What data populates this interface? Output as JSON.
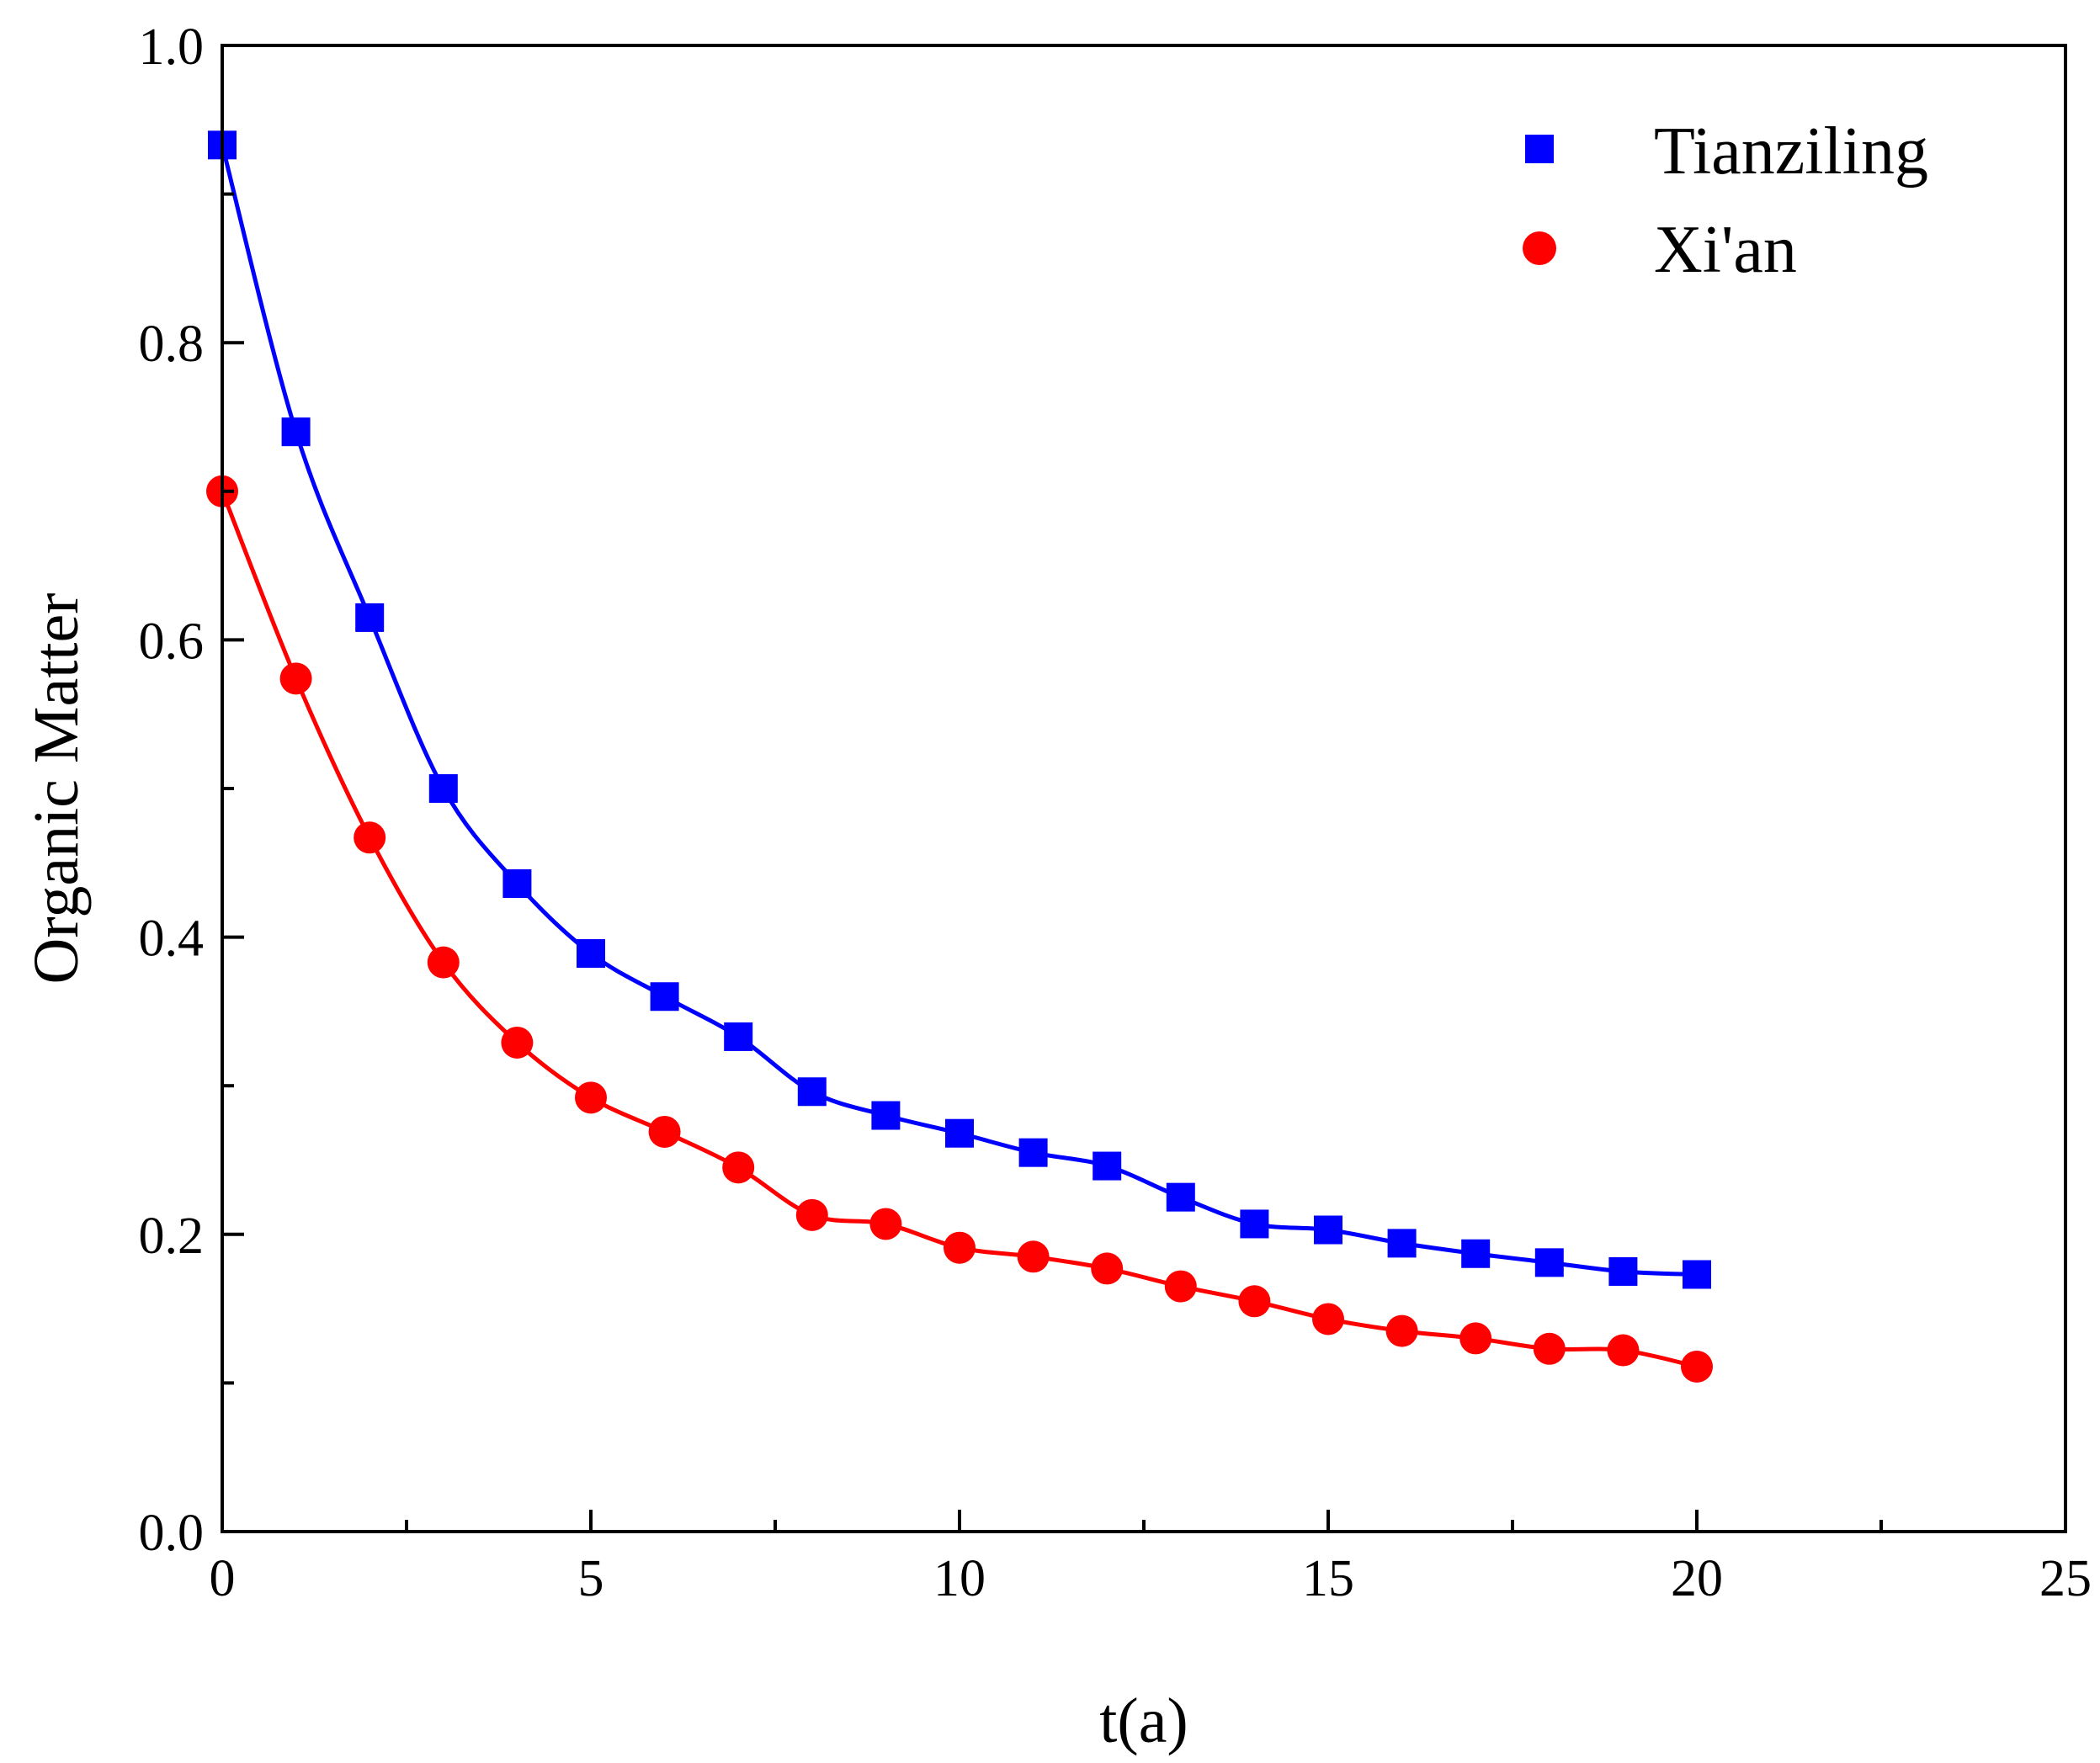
{
  "chart_data": {
    "type": "scatter",
    "title": "",
    "xlabel": "t(a)",
    "ylabel": "Organic Matter",
    "xlim": [
      0,
      25
    ],
    "ylim": [
      0,
      1.0
    ],
    "x_ticks": [
      0,
      5,
      10,
      15,
      20,
      25
    ],
    "x_tick_labels": [
      "0",
      "5",
      "10",
      "15",
      "20",
      "25"
    ],
    "y_ticks": [
      0.0,
      0.2,
      0.4,
      0.6,
      0.8,
      1.0
    ],
    "y_tick_labels": [
      "0.0",
      "0.2",
      "0.4",
      "0.6",
      "0.8",
      "1.0"
    ],
    "grid": false,
    "legend_position": "top-right",
    "series": [
      {
        "name": "Tianziling",
        "color": "#0000ff",
        "marker": "square",
        "fit_line": true,
        "x": [
          0,
          1,
          2,
          3,
          4,
          5,
          6,
          7,
          8,
          9,
          10,
          11,
          12,
          13,
          14,
          15,
          16,
          17,
          18,
          19,
          20
        ],
        "values": [
          0.933,
          0.74,
          0.615,
          0.5,
          0.436,
          0.389,
          0.36,
          0.333,
          0.296,
          0.28,
          0.268,
          0.255,
          0.246,
          0.225,
          0.207,
          0.203,
          0.194,
          0.187,
          0.181,
          0.175,
          0.173
        ]
      },
      {
        "name": "Xi'an",
        "color": "#ff0000",
        "marker": "circle",
        "fit_line": true,
        "x": [
          0,
          1,
          2,
          3,
          4,
          5,
          6,
          7,
          8,
          9,
          10,
          11,
          12,
          13,
          14,
          15,
          16,
          17,
          18,
          19,
          20
        ],
        "values": [
          0.7,
          0.574,
          0.467,
          0.383,
          0.329,
          0.292,
          0.269,
          0.245,
          0.213,
          0.207,
          0.191,
          0.185,
          0.177,
          0.165,
          0.155,
          0.143,
          0.135,
          0.13,
          0.123,
          0.122,
          0.111
        ]
      }
    ]
  }
}
